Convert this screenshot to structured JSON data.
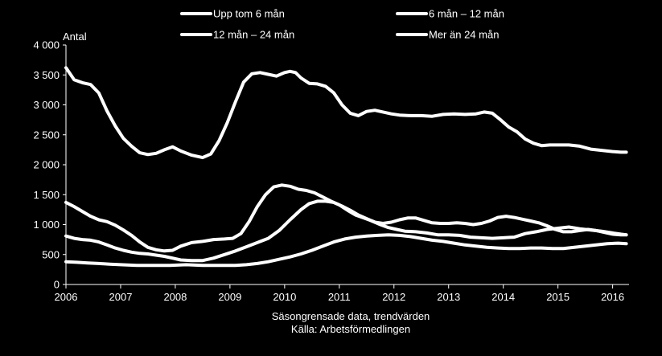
{
  "chart_data": {
    "type": "line",
    "ylabel": "Antal",
    "ylim": [
      0,
      4000
    ],
    "yticks": [
      0,
      500,
      1000,
      1500,
      2000,
      2500,
      3000,
      3500,
      4000
    ],
    "ytick_labels": [
      "0",
      "500",
      "1 000",
      "1 500",
      "2 000",
      "2 500",
      "3 000",
      "3 500",
      "4 000"
    ],
    "xlim": [
      2006,
      2016.3
    ],
    "xticks": [
      2006,
      2007,
      2008,
      2009,
      2010,
      2011,
      2012,
      2013,
      2014,
      2015,
      2016
    ],
    "xtick_labels": [
      "2006",
      "2007",
      "2008",
      "2009",
      "2010",
      "2011",
      "2012",
      "2013",
      "2014",
      "2015",
      "2016"
    ],
    "grid": false,
    "legend_position": "top",
    "line_color": "#ffffff",
    "footnote": [
      "Säsongrensade data, trendvärden",
      "Källa: Arbetsförmedlingen"
    ],
    "series": [
      {
        "name": "Upp tom 6 mån",
        "points": [
          [
            2006.0,
            3620
          ],
          [
            2006.15,
            3420
          ],
          [
            2006.3,
            3370
          ],
          [
            2006.45,
            3340
          ],
          [
            2006.6,
            3200
          ],
          [
            2006.75,
            2900
          ],
          [
            2006.9,
            2650
          ],
          [
            2007.05,
            2440
          ],
          [
            2007.2,
            2310
          ],
          [
            2007.35,
            2200
          ],
          [
            2007.5,
            2170
          ],
          [
            2007.65,
            2190
          ],
          [
            2007.8,
            2250
          ],
          [
            2007.95,
            2300
          ],
          [
            2008.1,
            2230
          ],
          [
            2008.3,
            2160
          ],
          [
            2008.5,
            2120
          ],
          [
            2008.65,
            2180
          ],
          [
            2008.8,
            2400
          ],
          [
            2008.95,
            2700
          ],
          [
            2009.1,
            3050
          ],
          [
            2009.25,
            3380
          ],
          [
            2009.4,
            3520
          ],
          [
            2009.55,
            3540
          ],
          [
            2009.7,
            3510
          ],
          [
            2009.85,
            3480
          ],
          [
            2010.0,
            3540
          ],
          [
            2010.1,
            3560
          ],
          [
            2010.2,
            3540
          ],
          [
            2010.3,
            3450
          ],
          [
            2010.45,
            3360
          ],
          [
            2010.6,
            3350
          ],
          [
            2010.75,
            3310
          ],
          [
            2010.9,
            3200
          ],
          [
            2011.05,
            3000
          ],
          [
            2011.2,
            2860
          ],
          [
            2011.35,
            2820
          ],
          [
            2011.5,
            2890
          ],
          [
            2011.65,
            2910
          ],
          [
            2011.8,
            2880
          ],
          [
            2011.95,
            2850
          ],
          [
            2012.1,
            2830
          ],
          [
            2012.3,
            2820
          ],
          [
            2012.5,
            2820
          ],
          [
            2012.7,
            2810
          ],
          [
            2012.9,
            2840
          ],
          [
            2013.1,
            2850
          ],
          [
            2013.3,
            2840
          ],
          [
            2013.5,
            2850
          ],
          [
            2013.65,
            2880
          ],
          [
            2013.8,
            2860
          ],
          [
            2013.95,
            2750
          ],
          [
            2014.1,
            2630
          ],
          [
            2014.25,
            2550
          ],
          [
            2014.4,
            2430
          ],
          [
            2014.55,
            2360
          ],
          [
            2014.7,
            2320
          ],
          [
            2014.85,
            2330
          ],
          [
            2015.0,
            2330
          ],
          [
            2015.2,
            2330
          ],
          [
            2015.4,
            2310
          ],
          [
            2015.6,
            2260
          ],
          [
            2015.8,
            2240
          ],
          [
            2016.0,
            2220
          ],
          [
            2016.15,
            2210
          ],
          [
            2016.25,
            2210
          ]
        ]
      },
      {
        "name": "6 mån – 12 mån",
        "points": [
          [
            2006.0,
            1370
          ],
          [
            2006.15,
            1300
          ],
          [
            2006.3,
            1220
          ],
          [
            2006.45,
            1140
          ],
          [
            2006.6,
            1080
          ],
          [
            2006.75,
            1050
          ],
          [
            2006.9,
            990
          ],
          [
            2007.05,
            910
          ],
          [
            2007.2,
            820
          ],
          [
            2007.35,
            710
          ],
          [
            2007.5,
            620
          ],
          [
            2007.65,
            580
          ],
          [
            2007.8,
            560
          ],
          [
            2007.95,
            570
          ],
          [
            2008.1,
            640
          ],
          [
            2008.3,
            700
          ],
          [
            2008.5,
            720
          ],
          [
            2008.7,
            750
          ],
          [
            2008.9,
            760
          ],
          [
            2009.05,
            770
          ],
          [
            2009.2,
            850
          ],
          [
            2009.35,
            1050
          ],
          [
            2009.5,
            1300
          ],
          [
            2009.65,
            1500
          ],
          [
            2009.8,
            1630
          ],
          [
            2009.95,
            1660
          ],
          [
            2010.1,
            1640
          ],
          [
            2010.25,
            1590
          ],
          [
            2010.4,
            1570
          ],
          [
            2010.55,
            1530
          ],
          [
            2010.7,
            1460
          ],
          [
            2010.85,
            1390
          ],
          [
            2011.0,
            1330
          ],
          [
            2011.15,
            1240
          ],
          [
            2011.3,
            1160
          ],
          [
            2011.45,
            1110
          ],
          [
            2011.6,
            1060
          ],
          [
            2011.75,
            1000
          ],
          [
            2011.9,
            950
          ],
          [
            2012.05,
            920
          ],
          [
            2012.2,
            890
          ],
          [
            2012.4,
            880
          ],
          [
            2012.6,
            860
          ],
          [
            2012.8,
            830
          ],
          [
            2013.0,
            830
          ],
          [
            2013.2,
            820
          ],
          [
            2013.4,
            790
          ],
          [
            2013.6,
            780
          ],
          [
            2013.8,
            770
          ],
          [
            2014.0,
            780
          ],
          [
            2014.2,
            790
          ],
          [
            2014.4,
            850
          ],
          [
            2014.6,
            880
          ],
          [
            2014.8,
            920
          ],
          [
            2015.0,
            940
          ],
          [
            2015.2,
            960
          ],
          [
            2015.4,
            930
          ],
          [
            2015.6,
            910
          ],
          [
            2015.8,
            890
          ],
          [
            2016.0,
            860
          ],
          [
            2016.15,
            840
          ],
          [
            2016.25,
            830
          ]
        ]
      },
      {
        "name": "12 mån – 24 mån",
        "points": [
          [
            2006.0,
            810
          ],
          [
            2006.15,
            770
          ],
          [
            2006.3,
            750
          ],
          [
            2006.45,
            740
          ],
          [
            2006.6,
            710
          ],
          [
            2006.75,
            660
          ],
          [
            2006.9,
            610
          ],
          [
            2007.05,
            570
          ],
          [
            2007.2,
            540
          ],
          [
            2007.35,
            520
          ],
          [
            2007.5,
            510
          ],
          [
            2007.65,
            490
          ],
          [
            2007.8,
            470
          ],
          [
            2007.95,
            440
          ],
          [
            2008.1,
            410
          ],
          [
            2008.3,
            400
          ],
          [
            2008.5,
            400
          ],
          [
            2008.7,
            440
          ],
          [
            2008.9,
            500
          ],
          [
            2009.1,
            560
          ],
          [
            2009.3,
            630
          ],
          [
            2009.5,
            700
          ],
          [
            2009.7,
            770
          ],
          [
            2009.9,
            900
          ],
          [
            2010.1,
            1080
          ],
          [
            2010.3,
            1250
          ],
          [
            2010.45,
            1350
          ],
          [
            2010.6,
            1390
          ],
          [
            2010.75,
            1390
          ],
          [
            2010.9,
            1370
          ],
          [
            2011.05,
            1310
          ],
          [
            2011.2,
            1240
          ],
          [
            2011.35,
            1160
          ],
          [
            2011.5,
            1100
          ],
          [
            2011.65,
            1040
          ],
          [
            2011.8,
            1020
          ],
          [
            2011.95,
            1040
          ],
          [
            2012.1,
            1080
          ],
          [
            2012.25,
            1110
          ],
          [
            2012.4,
            1110
          ],
          [
            2012.55,
            1070
          ],
          [
            2012.7,
            1030
          ],
          [
            2012.85,
            1020
          ],
          [
            2013.0,
            1020
          ],
          [
            2013.15,
            1030
          ],
          [
            2013.3,
            1020
          ],
          [
            2013.45,
            1000
          ],
          [
            2013.6,
            1020
          ],
          [
            2013.75,
            1060
          ],
          [
            2013.9,
            1120
          ],
          [
            2014.05,
            1140
          ],
          [
            2014.2,
            1120
          ],
          [
            2014.35,
            1090
          ],
          [
            2014.5,
            1060
          ],
          [
            2014.65,
            1030
          ],
          [
            2014.8,
            980
          ],
          [
            2014.95,
            920
          ],
          [
            2015.1,
            880
          ],
          [
            2015.25,
            880
          ],
          [
            2015.4,
            900
          ],
          [
            2015.55,
            920
          ],
          [
            2015.7,
            900
          ],
          [
            2015.85,
            870
          ],
          [
            2016.0,
            840
          ],
          [
            2016.15,
            830
          ],
          [
            2016.25,
            830
          ]
        ]
      },
      {
        "name": "Mer än 24 mån",
        "points": [
          [
            2006.0,
            380
          ],
          [
            2006.2,
            370
          ],
          [
            2006.4,
            360
          ],
          [
            2006.6,
            350
          ],
          [
            2006.8,
            340
          ],
          [
            2007.0,
            330
          ],
          [
            2007.3,
            320
          ],
          [
            2007.6,
            320
          ],
          [
            2007.9,
            320
          ],
          [
            2008.2,
            330
          ],
          [
            2008.5,
            320
          ],
          [
            2008.8,
            320
          ],
          [
            2009.1,
            320
          ],
          [
            2009.3,
            330
          ],
          [
            2009.5,
            350
          ],
          [
            2009.7,
            380
          ],
          [
            2009.9,
            420
          ],
          [
            2010.1,
            460
          ],
          [
            2010.3,
            510
          ],
          [
            2010.5,
            570
          ],
          [
            2010.7,
            640
          ],
          [
            2010.9,
            710
          ],
          [
            2011.1,
            760
          ],
          [
            2011.3,
            790
          ],
          [
            2011.5,
            810
          ],
          [
            2011.7,
            820
          ],
          [
            2011.9,
            830
          ],
          [
            2012.1,
            820
          ],
          [
            2012.3,
            800
          ],
          [
            2012.5,
            770
          ],
          [
            2012.7,
            740
          ],
          [
            2012.9,
            720
          ],
          [
            2013.1,
            690
          ],
          [
            2013.3,
            660
          ],
          [
            2013.5,
            640
          ],
          [
            2013.7,
            620
          ],
          [
            2013.9,
            610
          ],
          [
            2014.1,
            600
          ],
          [
            2014.3,
            600
          ],
          [
            2014.5,
            610
          ],
          [
            2014.7,
            610
          ],
          [
            2014.9,
            600
          ],
          [
            2015.1,
            600
          ],
          [
            2015.3,
            620
          ],
          [
            2015.5,
            640
          ],
          [
            2015.7,
            660
          ],
          [
            2015.9,
            680
          ],
          [
            2016.1,
            690
          ],
          [
            2016.25,
            680
          ]
        ]
      }
    ]
  }
}
